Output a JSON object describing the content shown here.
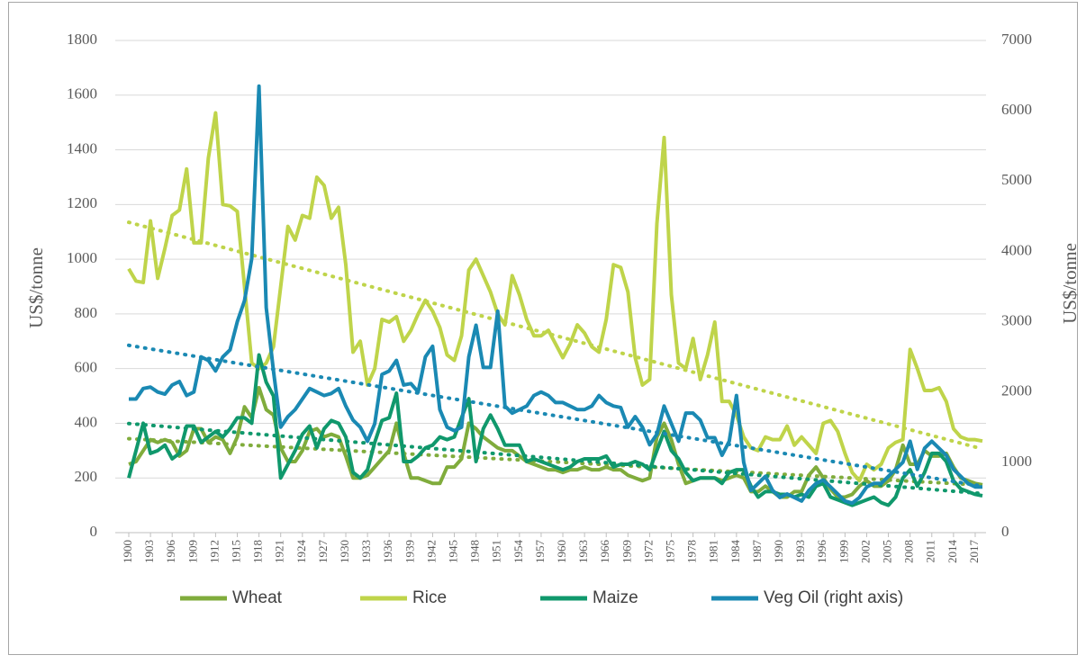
{
  "chart_data": {
    "type": "line",
    "x": [
      1900,
      1901,
      1902,
      1903,
      1904,
      1905,
      1906,
      1907,
      1908,
      1909,
      1910,
      1911,
      1912,
      1913,
      1914,
      1915,
      1916,
      1917,
      1918,
      1919,
      1920,
      1921,
      1922,
      1923,
      1924,
      1925,
      1926,
      1927,
      1928,
      1929,
      1930,
      1931,
      1932,
      1933,
      1934,
      1935,
      1936,
      1937,
      1938,
      1939,
      1940,
      1941,
      1942,
      1943,
      1944,
      1945,
      1946,
      1947,
      1948,
      1949,
      1950,
      1951,
      1952,
      1953,
      1954,
      1955,
      1956,
      1957,
      1958,
      1959,
      1960,
      1961,
      1962,
      1963,
      1964,
      1965,
      1966,
      1967,
      1968,
      1969,
      1970,
      1971,
      1972,
      1973,
      1974,
      1975,
      1976,
      1977,
      1978,
      1979,
      1980,
      1981,
      1982,
      1983,
      1984,
      1985,
      1986,
      1987,
      1988,
      1989,
      1990,
      1991,
      1992,
      1993,
      1994,
      1995,
      1996,
      1997,
      1998,
      1999,
      2000,
      2001,
      2002,
      2003,
      2004,
      2005,
      2006,
      2007,
      2008,
      2009,
      2010,
      2011,
      2012,
      2013,
      2014,
      2015,
      2016,
      2017,
      2018
    ],
    "xlim": [
      1900,
      2018
    ],
    "xticks": [
      1900,
      1903,
      1906,
      1909,
      1912,
      1915,
      1918,
      1921,
      1924,
      1927,
      1930,
      1933,
      1936,
      1939,
      1942,
      1945,
      1948,
      1951,
      1954,
      1957,
      1960,
      1963,
      1966,
      1969,
      1972,
      1975,
      1978,
      1981,
      1984,
      1987,
      1990,
      1993,
      1996,
      1999,
      2002,
      2005,
      2008,
      2011,
      2014,
      2017
    ],
    "ylabel": "US$/tonne",
    "y2label": "US$/tonne",
    "ylim": [
      0,
      1800
    ],
    "yticks": [
      0,
      200,
      400,
      600,
      800,
      1000,
      1200,
      1400,
      1600,
      1800
    ],
    "y2lim": [
      0,
      7000
    ],
    "y2ticks": [
      0,
      1000,
      2000,
      3000,
      4000,
      5000,
      6000,
      7000
    ],
    "grid": true,
    "legend": "bottom",
    "trendline": true,
    "series": [
      {
        "name": "Wheat",
        "color": "#80ac3c",
        "values": [
          250,
          260,
          300,
          340,
          330,
          340,
          330,
          280,
          300,
          380,
          380,
          330,
          350,
          340,
          290,
          350,
          460,
          420,
          530,
          450,
          430,
          310,
          260,
          260,
          300,
          370,
          380,
          350,
          360,
          350,
          280,
          200,
          200,
          210,
          240,
          270,
          300,
          400,
          290,
          200,
          200,
          190,
          180,
          180,
          240,
          240,
          270,
          400,
          380,
          350,
          330,
          310,
          300,
          300,
          280,
          260,
          250,
          240,
          230,
          230,
          220,
          230,
          230,
          240,
          230,
          230,
          240,
          230,
          230,
          210,
          200,
          190,
          200,
          350,
          400,
          340,
          250,
          180,
          190,
          200,
          200,
          200,
          190,
          200,
          210,
          200,
          150,
          150,
          170,
          150,
          130,
          130,
          150,
          150,
          210,
          240,
          200,
          160,
          130,
          130,
          140,
          170,
          190,
          170,
          170,
          190,
          230,
          320,
          250,
          250,
          300,
          280,
          280,
          290,
          240,
          200,
          190,
          180,
          175
        ]
      },
      {
        "name": "Rice",
        "color": "#bfd44a",
        "values": [
          965,
          920,
          915,
          1140,
          930,
          1040,
          1160,
          1180,
          1330,
          1060,
          1060,
          1370,
          1535,
          1200,
          1195,
          1175,
          900,
          620,
          600,
          620,
          680,
          900,
          1120,
          1070,
          1160,
          1150,
          1300,
          1270,
          1150,
          1190,
          980,
          660,
          700,
          540,
          600,
          780,
          770,
          790,
          700,
          740,
          800,
          850,
          810,
          750,
          650,
          630,
          720,
          960,
          1000,
          940,
          880,
          800,
          760,
          940,
          870,
          780,
          720,
          720,
          740,
          690,
          640,
          690,
          760,
          730,
          680,
          660,
          780,
          980,
          970,
          880,
          640,
          540,
          560,
          1130,
          1445,
          870,
          620,
          600,
          710,
          560,
          650,
          770,
          480,
          480,
          430,
          350,
          310,
          300,
          350,
          340,
          340,
          390,
          320,
          350,
          320,
          290,
          400,
          410,
          370,
          290,
          220,
          190,
          250,
          230,
          250,
          310,
          330,
          340,
          670,
          600,
          520,
          520,
          530,
          480,
          380,
          350,
          340,
          340,
          335
        ]
      },
      {
        "name": "Maize",
        "color": "#10986c",
        "values": [
          200,
          300,
          400,
          290,
          300,
          320,
          270,
          290,
          390,
          390,
          330,
          350,
          370,
          350,
          380,
          420,
          420,
          400,
          650,
          550,
          500,
          200,
          250,
          300,
          360,
          390,
          310,
          380,
          410,
          400,
          350,
          220,
          200,
          230,
          330,
          410,
          420,
          510,
          260,
          260,
          280,
          310,
          320,
          350,
          340,
          350,
          420,
          490,
          260,
          380,
          430,
          380,
          320,
          320,
          320,
          260,
          270,
          260,
          250,
          240,
          230,
          240,
          260,
          270,
          270,
          270,
          280,
          240,
          250,
          250,
          260,
          250,
          230,
          300,
          370,
          300,
          270,
          220,
          190,
          200,
          200,
          200,
          180,
          220,
          230,
          230,
          170,
          130,
          150,
          150,
          140,
          140,
          130,
          140,
          130,
          170,
          180,
          130,
          120,
          110,
          100,
          110,
          120,
          130,
          110,
          100,
          130,
          200,
          230,
          170,
          220,
          290,
          290,
          260,
          190,
          160,
          150,
          140,
          135
        ]
      },
      {
        "name": "Veg Oil (right axis)",
        "color": "#1a89b3",
        "axis": "y2",
        "values": [
          1900,
          1900,
          2050,
          2070,
          2000,
          1970,
          2100,
          2150,
          1950,
          2000,
          2500,
          2450,
          2300,
          2500,
          2600,
          3000,
          3300,
          3900,
          6350,
          3200,
          2300,
          1500,
          1650,
          1750,
          1900,
          2050,
          2000,
          1950,
          1980,
          2050,
          1800,
          1600,
          1500,
          1300,
          1550,
          2250,
          2300,
          2450,
          2100,
          2120,
          2000,
          2500,
          2650,
          1750,
          1500,
          1450,
          1500,
          2500,
          2950,
          2350,
          2350,
          3150,
          1800,
          1700,
          1750,
          1800,
          1950,
          2000,
          1950,
          1850,
          1850,
          1800,
          1750,
          1750,
          1800,
          1950,
          1850,
          1800,
          1780,
          1500,
          1650,
          1500,
          1250,
          1400,
          1800,
          1550,
          1300,
          1700,
          1700,
          1600,
          1350,
          1350,
          1100,
          1300,
          1950,
          1000,
          600,
          700,
          800,
          600,
          500,
          550,
          500,
          450,
          600,
          700,
          750,
          650,
          550,
          450,
          420,
          500,
          650,
          700,
          700,
          800,
          900,
          1000,
          1300,
          900,
          1200,
          1300,
          1200,
          1100,
          900,
          800,
          700,
          650,
          650
        ]
      }
    ]
  }
}
